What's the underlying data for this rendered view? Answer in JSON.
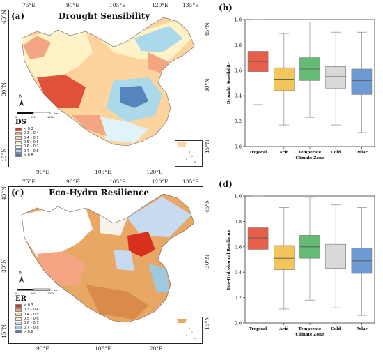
{
  "panels": {
    "a": {
      "label": "(a)",
      "title": "Drought Sensibility",
      "legend_title": "DS",
      "legend_items": [
        {
          "label": "< 0.3",
          "color": "#d7301f"
        },
        {
          "label": "0.3 – 0.4",
          "color": "#f4a582"
        },
        {
          "label": "0.4 – 0.5",
          "color": "#fdd49e"
        },
        {
          "label": "0.5 – 0.6",
          "color": "#fff2c7"
        },
        {
          "label": "0.6 – 0.7",
          "color": "#e0f3f8"
        },
        {
          "label": "0.7 – 0.8",
          "color": "#abd9e9"
        },
        {
          "label": "> 0.8",
          "color": "#4575b4"
        }
      ]
    },
    "c": {
      "label": "(c)",
      "title": "Eco-Hydro Resilience",
      "legend_title": "ER",
      "legend_items": [
        {
          "label": "< 0.3",
          "color": "#d7301f"
        },
        {
          "label": "0.3 – 0.4",
          "color": "#f4a582"
        },
        {
          "label": "0.4 – 0.5",
          "color": "#fdd49e"
        },
        {
          "label": "0.5 – 0.6",
          "color": "#fff2c7"
        },
        {
          "label": "0.6 – 0.7",
          "color": "#c6dbef"
        },
        {
          "label": "0.7 – 0.8",
          "color": "#9ecae1"
        },
        {
          "label": "> 0.8",
          "color": "#6a6fb0"
        }
      ]
    },
    "b": {
      "label": "(b)"
    },
    "d": {
      "label": "(d)"
    }
  },
  "map_coords": {
    "top_lon": [
      "75°E",
      "90°E",
      "105°E",
      "120°E",
      "135°E"
    ],
    "bottom_lon": [
      "90°E",
      "105°E",
      "120°E"
    ],
    "left_lat": [
      "45°N",
      "30°N",
      "15°N"
    ],
    "right_lat": [
      "45°N",
      "30°N",
      "15°N"
    ]
  },
  "map_extras": {
    "north_label": "N",
    "scale_labels": [
      "0",
      "500",
      "1000"
    ],
    "scale_unit": "km"
  },
  "chart_data": [
    {
      "type": "box",
      "panel": "b",
      "categories": [
        "Tropical",
        "Arid",
        "Temperate",
        "Cold",
        "Polar"
      ],
      "xlabel": "Climate Zone",
      "ylabel": "Drought Sensibility",
      "ylim": [
        0,
        1.0
      ],
      "yticks": [
        "0.0",
        "0.2",
        "0.4",
        "0.6",
        "0.8",
        "1.0"
      ],
      "boxes": [
        {
          "name": "Tropical",
          "whislo": 0.33,
          "q1": 0.59,
          "med": 0.67,
          "q3": 0.75,
          "whishi": 1.0,
          "color": "#e8604c"
        },
        {
          "name": "Arid",
          "whislo": 0.17,
          "q1": 0.44,
          "med": 0.53,
          "q3": 0.62,
          "whishi": 0.89,
          "color": "#f2c65a"
        },
        {
          "name": "Temperate",
          "whislo": 0.23,
          "q1": 0.52,
          "med": 0.61,
          "q3": 0.7,
          "whishi": 0.98,
          "color": "#63bb74"
        },
        {
          "name": "Cold",
          "whislo": 0.17,
          "q1": 0.46,
          "med": 0.55,
          "q3": 0.63,
          "whishi": 0.9,
          "color": "#d9d9d9"
        },
        {
          "name": "Polar",
          "whislo": 0.11,
          "q1": 0.41,
          "med": 0.52,
          "q3": 0.61,
          "whishi": 0.9,
          "color": "#6b9bd2"
        }
      ]
    },
    {
      "type": "box",
      "panel": "d",
      "categories": [
        "Tropical",
        "Arid",
        "Temperate",
        "Cold",
        "Polar"
      ],
      "xlabel": "Climate Zone",
      "ylabel": "Eco-Hydrological Resilience",
      "ylim": [
        0,
        1.0
      ],
      "yticks": [
        "0.0",
        "0.2",
        "0.4",
        "0.6",
        "0.8",
        "1.0"
      ],
      "boxes": [
        {
          "name": "Tropical",
          "whislo": 0.3,
          "q1": 0.58,
          "med": 0.67,
          "q3": 0.75,
          "whishi": 1.0,
          "color": "#e8604c"
        },
        {
          "name": "Arid",
          "whislo": 0.11,
          "q1": 0.42,
          "med": 0.51,
          "q3": 0.61,
          "whishi": 0.91,
          "color": "#f2c65a"
        },
        {
          "name": "Temperate",
          "whislo": 0.18,
          "q1": 0.51,
          "med": 0.6,
          "q3": 0.69,
          "whishi": 0.99,
          "color": "#63bb74"
        },
        {
          "name": "Cold",
          "whislo": 0.12,
          "q1": 0.43,
          "med": 0.52,
          "q3": 0.62,
          "whishi": 0.93,
          "color": "#d9d9d9"
        },
        {
          "name": "Polar",
          "whislo": 0.06,
          "q1": 0.39,
          "med": 0.49,
          "q3": 0.59,
          "whishi": 0.91,
          "color": "#6b9bd2"
        }
      ]
    }
  ]
}
